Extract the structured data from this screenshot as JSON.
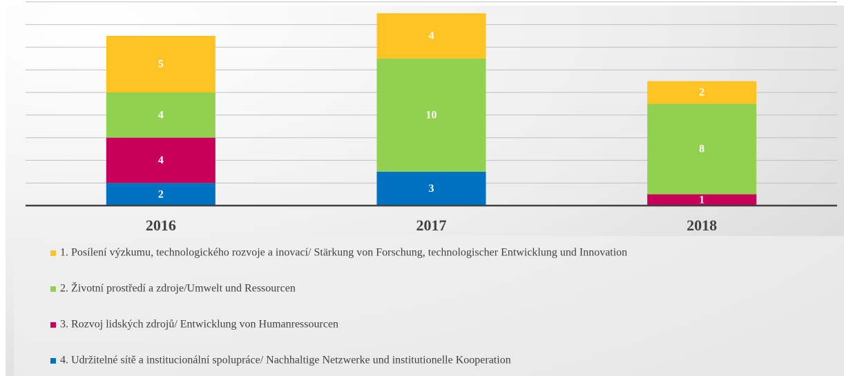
{
  "chart_data": {
    "type": "stacked_bar",
    "categories": [
      "2016",
      "2017",
      "2018"
    ],
    "series": [
      {
        "name": "4. Udržitelné sítě a institucionální spolupráce/ Nachhaltige Netzwerke und institutionelle Kooperation",
        "color": "#0070c0",
        "values": [
          2,
          3,
          null
        ]
      },
      {
        "name": "3. Rozvoj lidských zdrojů/ Entwicklung von Humanressourcen",
        "color": "#c8005a",
        "values": [
          4,
          null,
          1
        ]
      },
      {
        "name": "2. Životní prostředí a zdroje/Umwelt und Ressourcen",
        "color": "#92d050",
        "values": [
          4,
          10,
          8
        ]
      },
      {
        "name": "1. Posílení výzkumu, technologického rozvoje a inovací/ Stärkung von Forschung, technologischer Entwicklung und Innovation",
        "color": "#ffc423",
        "values": [
          5,
          4,
          2
        ]
      }
    ],
    "ylim": [
      0,
      18
    ],
    "yticks": [
      0,
      2,
      4,
      6,
      8,
      10,
      12,
      14,
      16,
      18
    ],
    "grid": true
  }
}
